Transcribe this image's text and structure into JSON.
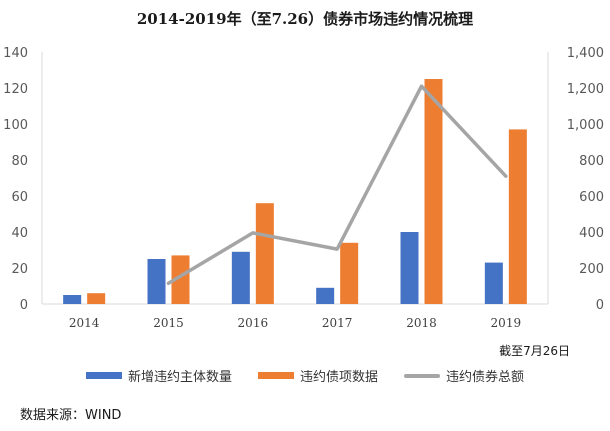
{
  "chart_data": {
    "type": "bar",
    "title": "2014-2019年（至7.26）债券市场违约情况梳理",
    "categories": [
      "2014",
      "2015",
      "2016",
      "2017",
      "2018",
      "2019"
    ],
    "series": [
      {
        "name": "新增违约主体数量",
        "type": "bar",
        "axis": "left",
        "color": "#4472C4",
        "values": [
          5,
          25,
          29,
          9,
          40,
          23
        ]
      },
      {
        "name": "违约债项数据",
        "type": "bar",
        "axis": "left",
        "color": "#ED7D31",
        "values": [
          6,
          27,
          56,
          34,
          125,
          97
        ]
      },
      {
        "name": "违约债券总额",
        "type": "line",
        "axis": "right",
        "color": "#A5A5A5",
        "values": [
          null,
          115,
          395,
          305,
          1210,
          710
        ]
      }
    ],
    "ylim_left": [
      0,
      140
    ],
    "yticks_left": [
      "0",
      "20",
      "40",
      "60",
      "80",
      "100",
      "120",
      "140"
    ],
    "ylim_right": [
      0,
      1400
    ],
    "yticks_right": [
      "0",
      "200",
      "400",
      "600",
      "800",
      "1,000",
      "1,200",
      "1,400"
    ],
    "grid": false,
    "legend_position": "bottom",
    "note": "截至7月26日",
    "source": "数据来源：WIND"
  }
}
